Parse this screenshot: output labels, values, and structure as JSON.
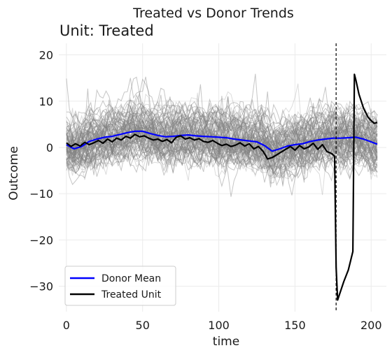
{
  "chart_data": {
    "type": "line",
    "title": "Treated vs Donor Trends",
    "subtitle": "Unit: Treated",
    "xlabel": "time",
    "ylabel": "Outcome",
    "xlim": [
      -5,
      210
    ],
    "ylim": [
      -35.5,
      22.5
    ],
    "xticks": [
      0,
      50,
      100,
      150,
      200
    ],
    "yticks": [
      20,
      10,
      0,
      -10,
      -20,
      -30
    ],
    "grid": true,
    "legend_position": "lower-left",
    "treatment_time": 177,
    "colors": {
      "donor_mean": "#0000ff",
      "treated": "#000000",
      "donors": "#808080",
      "grid": "#ebebeb"
    },
    "donor_series": {
      "name": "",
      "count": 90,
      "x_range": [
        0,
        204
      ],
      "spread_sd": 2.8
    },
    "series": [
      {
        "name": "Donor Mean",
        "x": [
          0,
          5,
          10,
          15,
          20,
          25,
          30,
          35,
          40,
          45,
          50,
          55,
          60,
          65,
          70,
          75,
          80,
          85,
          90,
          95,
          100,
          105,
          110,
          115,
          120,
          125,
          130,
          135,
          140,
          145,
          150,
          155,
          160,
          165,
          170,
          175,
          180,
          185,
          190,
          195,
          200,
          204
        ],
        "values": [
          0.6,
          -0.3,
          0.2,
          1.3,
          1.8,
          2.2,
          2.4,
          2.8,
          3.2,
          3.5,
          3.5,
          3.0,
          2.6,
          2.3,
          2.4,
          2.6,
          2.7,
          2.5,
          2.4,
          2.3,
          2.2,
          2.1,
          1.8,
          1.6,
          1.4,
          1.2,
          0.4,
          -0.8,
          -0.3,
          0.3,
          0.6,
          0.8,
          1.3,
          1.6,
          1.8,
          2.0,
          2.0,
          2.1,
          2.2,
          1.8,
          1.2,
          0.7
        ]
      },
      {
        "name": "Treated Unit",
        "x": [
          0,
          3,
          6,
          9,
          12,
          15,
          18,
          21,
          24,
          27,
          30,
          33,
          36,
          39,
          42,
          45,
          48,
          51,
          54,
          57,
          60,
          63,
          66,
          69,
          72,
          75,
          78,
          81,
          84,
          87,
          90,
          93,
          96,
          99,
          102,
          105,
          108,
          111,
          114,
          117,
          120,
          123,
          126,
          129,
          132,
          135,
          138,
          141,
          144,
          147,
          150,
          153,
          156,
          159,
          162,
          165,
          168,
          171,
          174,
          176,
          177,
          178,
          180,
          182,
          185,
          188,
          189,
          190,
          192,
          195,
          198,
          200,
          202,
          204
        ],
        "values": [
          1.0,
          0.2,
          0.8,
          0.3,
          1.1,
          0.6,
          1.0,
          1.5,
          0.9,
          1.8,
          1.2,
          2.0,
          1.6,
          2.4,
          2.0,
          2.8,
          2.3,
          2.5,
          2.0,
          1.6,
          1.8,
          1.3,
          1.7,
          1.0,
          2.2,
          2.5,
          1.8,
          2.1,
          1.6,
          1.9,
          1.3,
          1.1,
          1.5,
          0.9,
          0.4,
          0.7,
          0.2,
          0.5,
          1.0,
          0.3,
          0.8,
          -0.3,
          0.2,
          -0.8,
          -2.5,
          -2.2,
          -1.6,
          -1.0,
          -0.4,
          0.2,
          -0.6,
          0.4,
          -0.3,
          0.1,
          0.9,
          -0.4,
          0.6,
          -0.9,
          -1.3,
          -1.9,
          -26.0,
          -33.0,
          -31.0,
          -29.0,
          -26.5,
          -22.5,
          15.8,
          14.5,
          11.5,
          8.5,
          6.5,
          5.8,
          5.2,
          5.4
        ]
      }
    ]
  }
}
